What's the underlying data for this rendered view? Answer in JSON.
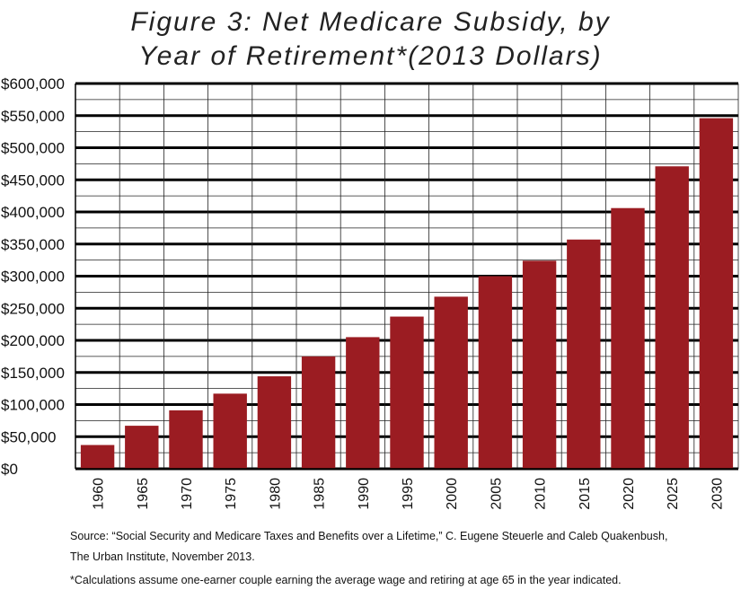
{
  "chart_data": {
    "type": "bar",
    "title_lines": [
      "Figure 3: Net Medicare Subsidy, by",
      "Year of Retirement*(2013 Dollars)"
    ],
    "categories": [
      "1960",
      "1965",
      "1970",
      "1975",
      "1980",
      "1985",
      "1990",
      "1995",
      "2000",
      "2005",
      "2010",
      "2015",
      "2020",
      "2025",
      "2030"
    ],
    "values": [
      37000,
      67000,
      91000,
      117000,
      144000,
      175000,
      205000,
      237000,
      268000,
      300000,
      324000,
      357000,
      406000,
      471000,
      546000
    ],
    "ylim": [
      0,
      600000
    ],
    "y_ticks": [
      "$0",
      "$50,000",
      "$100,000",
      "$150,000",
      "$200,000",
      "$250,000",
      "$300,000",
      "$350,000",
      "$400,000",
      "$450,000",
      "$500,000",
      "$550,000",
      "$600,000"
    ],
    "bar_color": "#9b1c22",
    "grid": true
  },
  "footnotes": {
    "source_line1": "Source: “Social Security and Medicare Taxes and Benefits over a Lifetime,” C. Eugene Steuerle and Caleb Quakenbush,",
    "source_line2": "The Urban Institute, November 2013.",
    "calc_note": "*Calculations assume one-earner couple earning the average wage and retiring at age 65 in the year indicated."
  }
}
